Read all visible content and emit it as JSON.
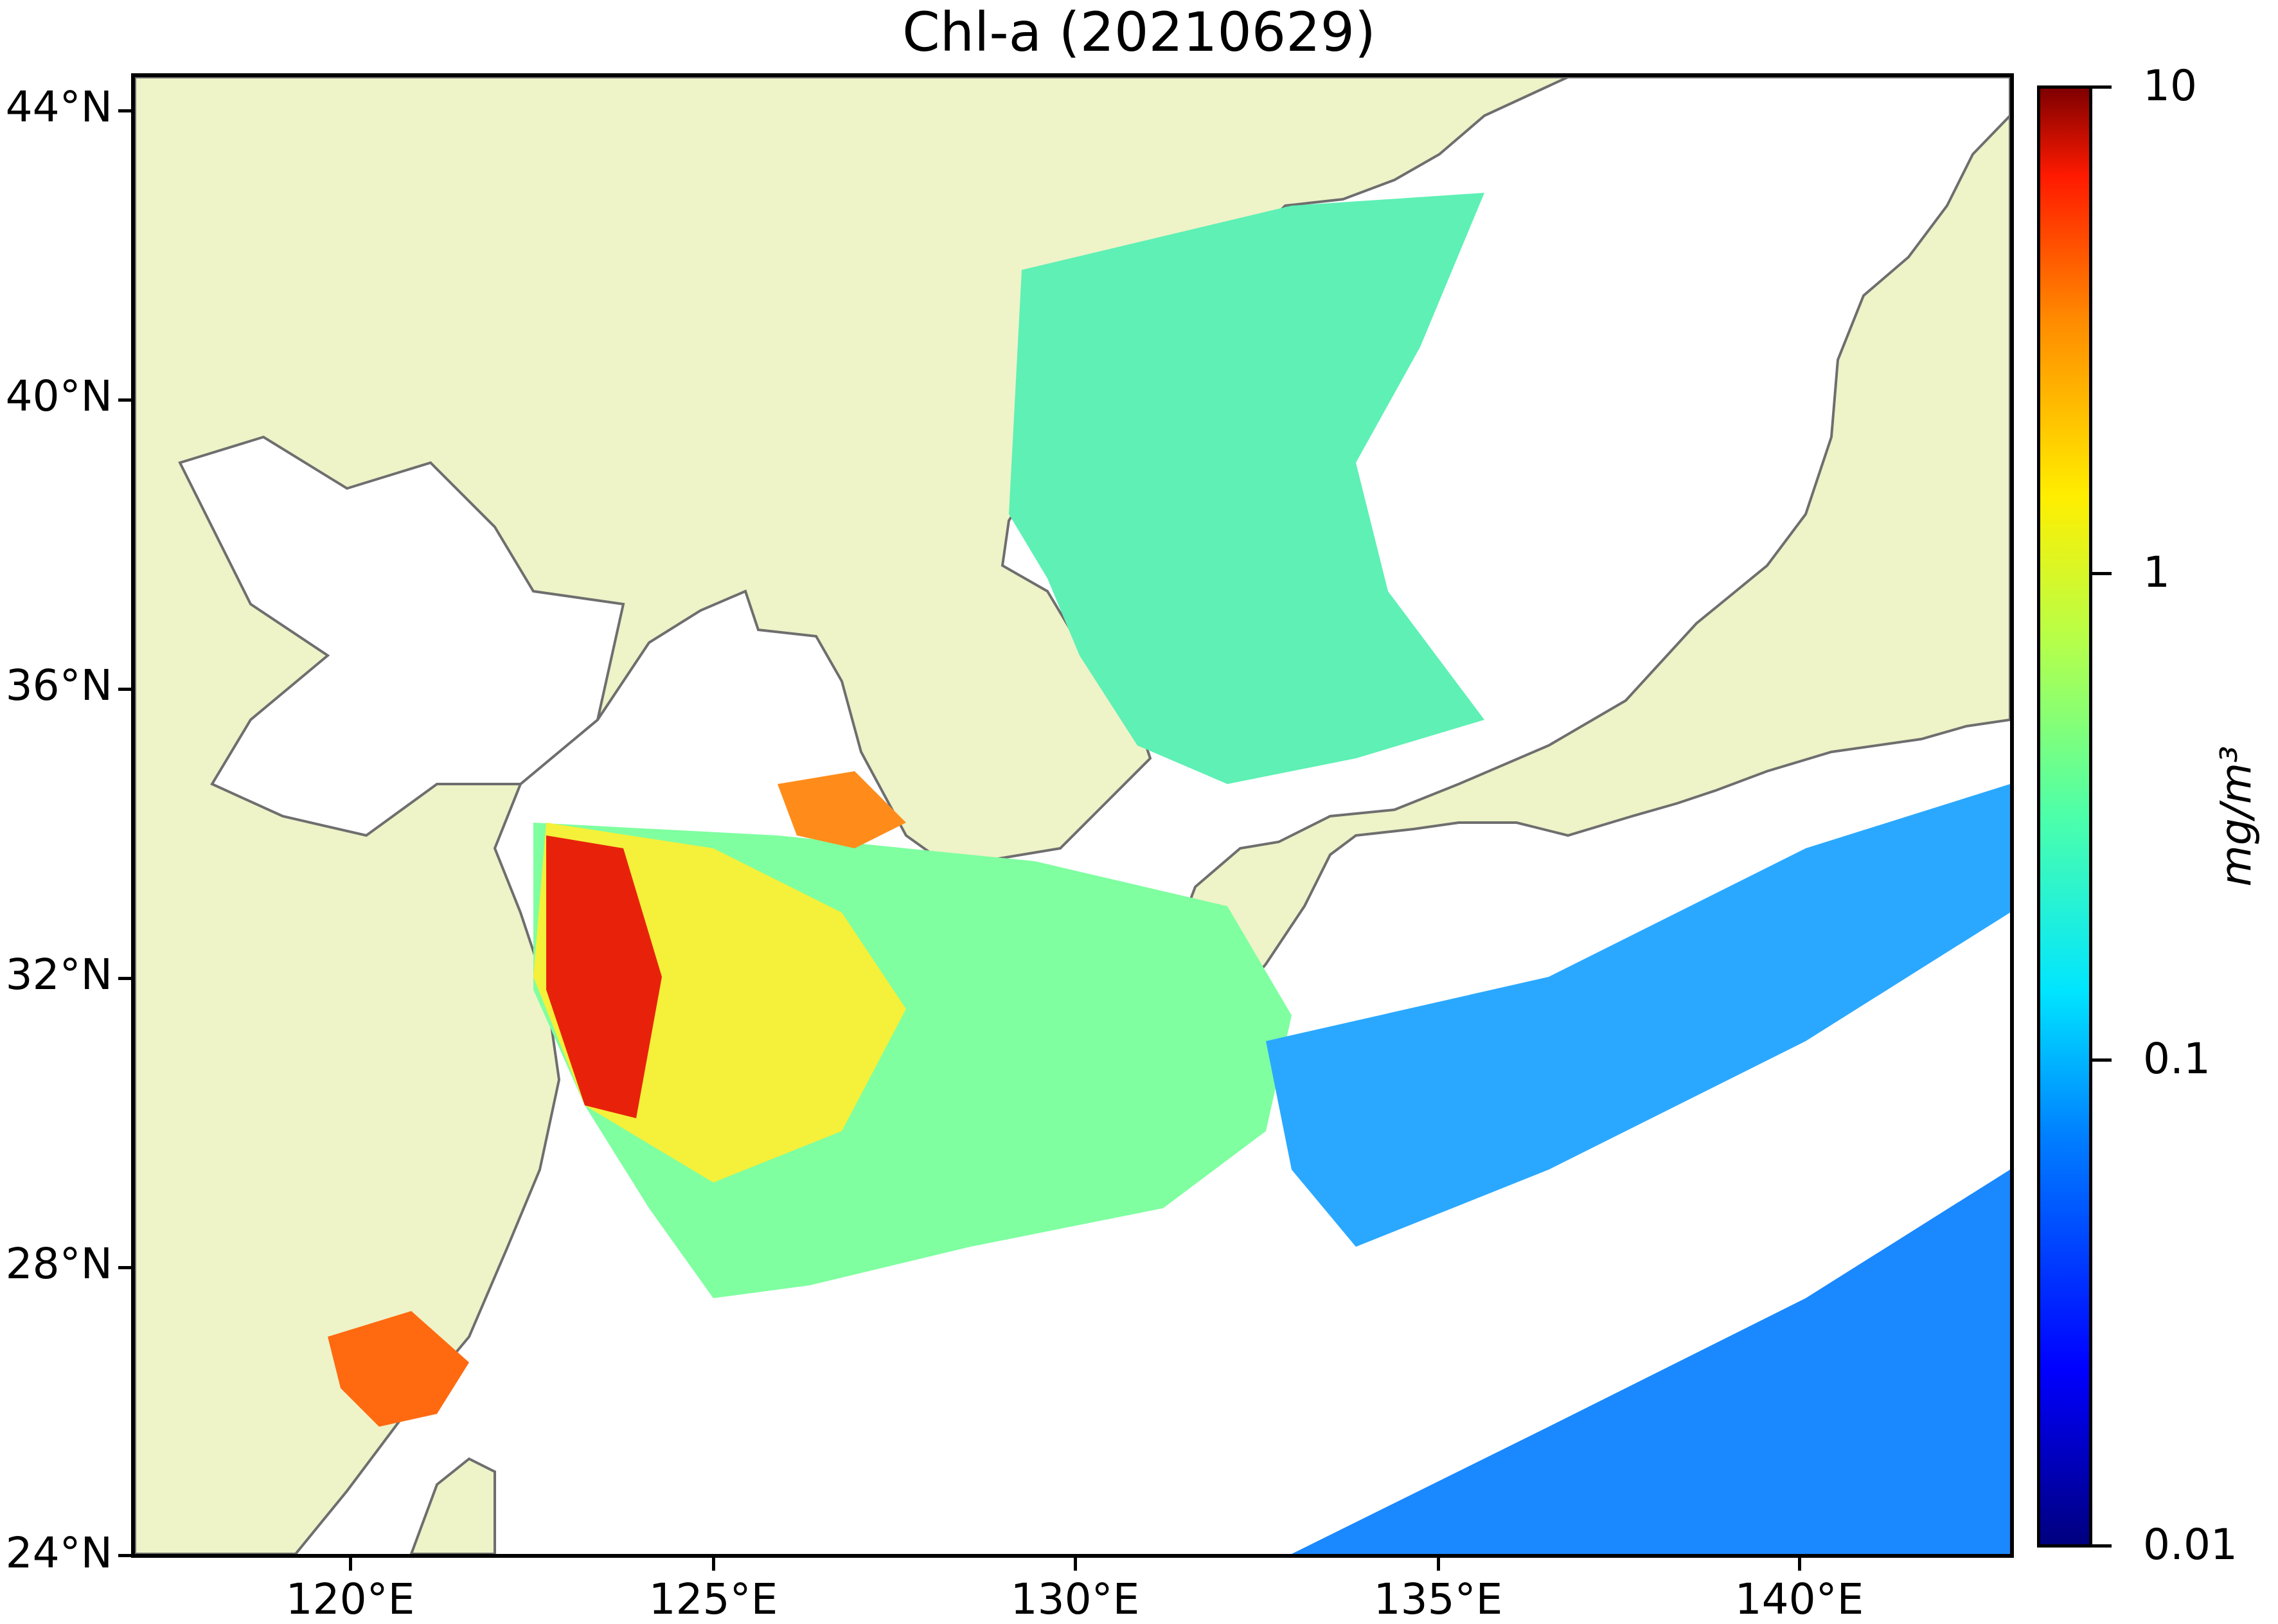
{
  "title": "Chl-a (20210629)",
  "map": {
    "lon_range": [
      117,
      143
    ],
    "lat_range": [
      24,
      44.5
    ],
    "lat_ticks": [
      "24°N",
      "28°N",
      "32°N",
      "36°N",
      "40°N",
      "44°N"
    ],
    "lon_ticks": [
      "120°E",
      "125°E",
      "130°E",
      "135°E",
      "140°E"
    ],
    "land_color": "#eef3c8",
    "coast_color": "#6e6e6e",
    "cloud_color": "#ffffff"
  },
  "colorbar": {
    "scale": "log",
    "range": [
      0.01,
      10
    ],
    "tick_labels": [
      "10",
      "1",
      "0.1",
      "0.01"
    ],
    "unit": "mg/m³",
    "colormap": "jet",
    "colors": [
      "#00007f",
      "#0000ff",
      "#007fff",
      "#00e5ff",
      "#4cffaa",
      "#b5ff4a",
      "#ffee00",
      "#ff8c00",
      "#ff1a00",
      "#7f0000"
    ]
  }
}
